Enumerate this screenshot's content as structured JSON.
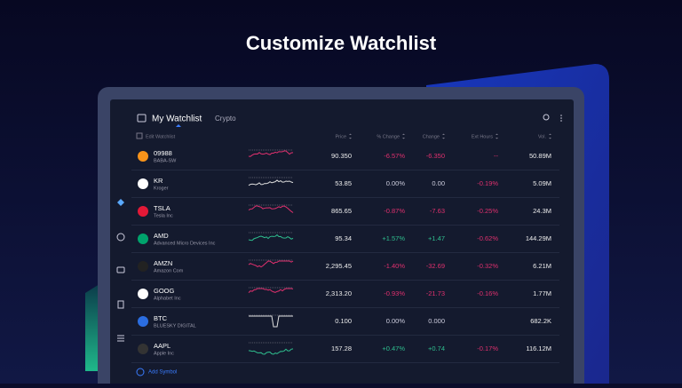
{
  "header": {
    "title": "Customize Watchlist"
  },
  "app": {
    "tabs": [
      "My Watchlist",
      "Crypto"
    ],
    "edit": "Edit Watchlist",
    "columns": [
      "Price",
      "% Change",
      "Change",
      "Ext Hours",
      "Vol."
    ],
    "rows": [
      {
        "symbol": "09988",
        "name": "BABA-SW",
        "price": "90.350",
        "pct": "-6.57%",
        "change": "-6.350",
        "ext": "--",
        "vol": "50.89M"
      },
      {
        "symbol": "KR",
        "name": "Kroger",
        "price": "53.85",
        "pct": "0.00%",
        "change": "0.00",
        "ext": "-0.19%",
        "vol": "5.09M"
      },
      {
        "symbol": "TSLA",
        "name": "Tesla Inc",
        "price": "865.65",
        "pct": "-0.87%",
        "change": "-7.63",
        "ext": "-0.25%",
        "vol": "24.3M"
      },
      {
        "symbol": "AMD",
        "name": "Advanced Micro Devices Inc",
        "price": "95.34",
        "pct": "+1.57%",
        "change": "+1.47",
        "ext": "-0.62%",
        "vol": "144.29M"
      },
      {
        "symbol": "AMZN",
        "name": "Amazon Com",
        "price": "2,295.45",
        "pct": "-1.40%",
        "change": "-32.69",
        "ext": "-0.32%",
        "vol": "6.21M"
      },
      {
        "symbol": "GOOG",
        "name": "Alphabet Inc",
        "price": "2,313.20",
        "pct": "-0.93%",
        "change": "-21.73",
        "ext": "-0.16%",
        "vol": "1.77M"
      },
      {
        "symbol": "BTC",
        "name": "BLUESKY DIGITAL",
        "price": "0.100",
        "pct": "0.00%",
        "change": "0.000",
        "vol": "682.2K"
      },
      {
        "symbol": "AAPL",
        "name": "Apple Inc",
        "price": "157.28",
        "pct": "+0.47%",
        "change": "+0.74",
        "ext": "-0.17%",
        "vol": "116.12M"
      }
    ],
    "add": "Add Symbol"
  }
}
